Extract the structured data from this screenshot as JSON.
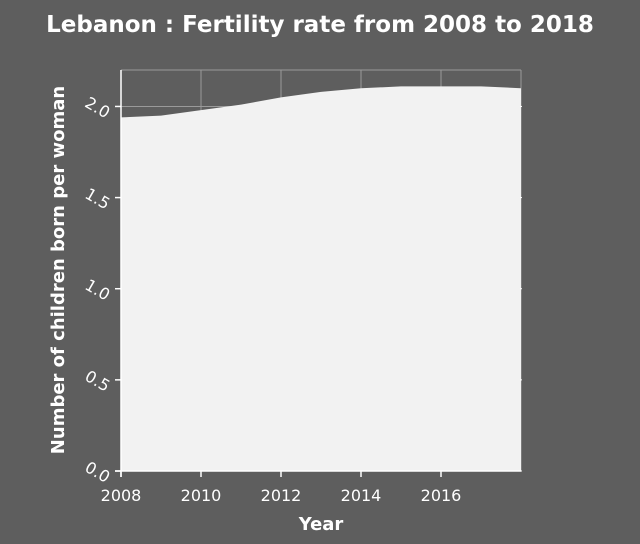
{
  "chart_data": {
    "type": "area",
    "title": "Lebanon : Fertility rate from 2008 to 2018",
    "xlabel": "Year",
    "ylabel": "Number of children born per woman",
    "xlim": [
      2008,
      2018
    ],
    "ylim": [
      0,
      2.2
    ],
    "x_ticks": [
      {
        "value": 2008,
        "label": "2008"
      },
      {
        "value": 2010,
        "label": "2010"
      },
      {
        "value": 2012,
        "label": "2012"
      },
      {
        "value": 2014,
        "label": "2014"
      },
      {
        "value": 2016,
        "label": "2016"
      }
    ],
    "y_ticks": [
      {
        "value": 0.0,
        "label": "0.0"
      },
      {
        "value": 0.5,
        "label": "0.5"
      },
      {
        "value": 1.0,
        "label": "1.0"
      },
      {
        "value": 1.5,
        "label": "1.5"
      },
      {
        "value": 2.0,
        "label": "2.0"
      }
    ],
    "x": [
      2008,
      2009,
      2010,
      2011,
      2012,
      2013,
      2014,
      2015,
      2016,
      2017,
      2018
    ],
    "values": [
      1.94,
      1.95,
      1.98,
      2.01,
      2.05,
      2.08,
      2.1,
      2.11,
      2.11,
      2.11,
      2.1
    ],
    "grid": true,
    "legend": "none",
    "colors": {
      "background": "#5e5e5e",
      "plot_area": "#5e5e5e",
      "area_fill": "#f2f2f2",
      "grid": "#9a9a9a",
      "axis": "#ffffff",
      "text": "#ffffff"
    }
  }
}
